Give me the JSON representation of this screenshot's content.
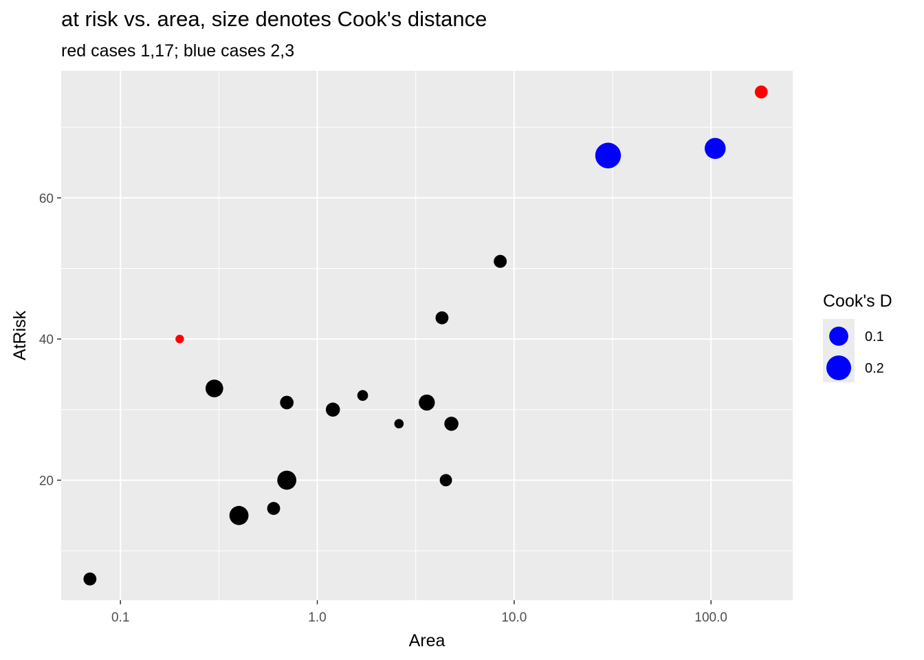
{
  "chart_data": {
    "type": "scatter",
    "title": "at risk vs. area, size denotes Cook's distance",
    "subtitle": "red cases 1,17; blue cases 2,3",
    "xlabel": "Area",
    "ylabel": "AtRisk",
    "x_scale": "log10",
    "xlim": [
      0.05,
      260
    ],
    "ylim": [
      3,
      78
    ],
    "x_ticks": [
      0.1,
      1,
      10,
      100
    ],
    "x_tick_labels": [
      "0.1",
      "1.0",
      "10.0",
      "100.0"
    ],
    "y_ticks": [
      20,
      40,
      60
    ],
    "y_tick_labels": [
      "20",
      "40",
      "60"
    ],
    "grid": true,
    "legend_position": "right",
    "legend": {
      "title": "Cook's D",
      "entries": [
        {
          "label": "0.1",
          "cooks_d": 0.1,
          "color": "#0000ff"
        },
        {
          "label": "0.2",
          "cooks_d": 0.2,
          "color": "#0000ff"
        }
      ]
    },
    "colors": {
      "highlight_red": "#ff0000",
      "highlight_blue": "#0000ff",
      "default": "#000000",
      "panel": "#ebebeb",
      "grid": "#ffffff"
    },
    "points": [
      {
        "x": 180,
        "y": 75,
        "cooks_d": 0.03,
        "color": "#ff0000"
      },
      {
        "x": 30,
        "y": 66,
        "cooks_d": 0.22,
        "color": "#0000ff"
      },
      {
        "x": 105,
        "y": 67,
        "cooks_d": 0.13,
        "color": "#0000ff"
      },
      {
        "x": 0.2,
        "y": 40,
        "cooks_d": 0.005,
        "color": "#ff0000"
      },
      {
        "x": 8.5,
        "y": 51,
        "cooks_d": 0.03,
        "color": "#000000"
      },
      {
        "x": 4.3,
        "y": 43,
        "cooks_d": 0.03,
        "color": "#000000"
      },
      {
        "x": 0.3,
        "y": 33,
        "cooks_d": 0.08,
        "color": "#000000"
      },
      {
        "x": 0.7,
        "y": 31,
        "cooks_d": 0.035,
        "color": "#000000"
      },
      {
        "x": 1.2,
        "y": 30,
        "cooks_d": 0.04,
        "color": "#000000"
      },
      {
        "x": 1.7,
        "y": 32,
        "cooks_d": 0.015,
        "color": "#000000"
      },
      {
        "x": 2.6,
        "y": 28,
        "cooks_d": 0.008,
        "color": "#000000"
      },
      {
        "x": 3.6,
        "y": 31,
        "cooks_d": 0.06,
        "color": "#000000"
      },
      {
        "x": 4.8,
        "y": 28,
        "cooks_d": 0.04,
        "color": "#000000"
      },
      {
        "x": 4.5,
        "y": 20,
        "cooks_d": 0.025,
        "color": "#000000"
      },
      {
        "x": 0.7,
        "y": 20,
        "cooks_d": 0.1,
        "color": "#000000"
      },
      {
        "x": 0.6,
        "y": 16,
        "cooks_d": 0.03,
        "color": "#000000"
      },
      {
        "x": 0.4,
        "y": 15,
        "cooks_d": 0.1,
        "color": "#000000"
      },
      {
        "x": 0.07,
        "y": 6,
        "cooks_d": 0.03,
        "color": "#000000"
      }
    ]
  }
}
